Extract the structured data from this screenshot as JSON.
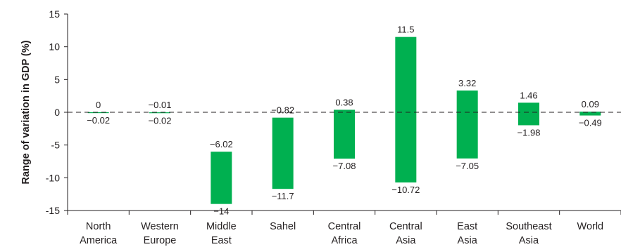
{
  "chart_data": {
    "type": "bar",
    "subtype": "floating-range",
    "title": "",
    "xlabel": "",
    "ylabel": "Range of variation in GDP (%)",
    "ylim": [
      -15,
      15
    ],
    "yticks": [
      "15",
      "10",
      "5",
      "0",
      "-5",
      "-10",
      "-15"
    ],
    "grid": false,
    "zero_line": "dashed",
    "bar_color": "#00b050",
    "categories": [
      [
        "North",
        "America"
      ],
      [
        "Western",
        "Europe"
      ],
      [
        "Middle",
        "East"
      ],
      [
        "Sahel"
      ],
      [
        "Central",
        "Africa"
      ],
      [
        "Central",
        "Asia"
      ],
      [
        "East",
        "Asia"
      ],
      [
        "Southeast",
        "Asia"
      ],
      [
        "World"
      ]
    ],
    "series": [
      {
        "values_high": [
          0,
          -0.01,
          -6.02,
          -0.82,
          0.38,
          11.5,
          3.32,
          1.46,
          0.09
        ],
        "values_low": [
          -0.02,
          -0.02,
          -14,
          -11.7,
          -7.08,
          -10.72,
          -7.05,
          -1.98,
          -0.49
        ]
      }
    ],
    "labels_high": [
      "0",
      "−0.01",
      "−6.02",
      "−0.82",
      "0.38",
      "11.5",
      "3.32",
      "1.46",
      "0.09"
    ],
    "labels_low": [
      "−0.02",
      "−0.02",
      "−14",
      "−11.7",
      "−7.08",
      "−10.72",
      "−7.05",
      "−1.98",
      "−0.49"
    ]
  }
}
